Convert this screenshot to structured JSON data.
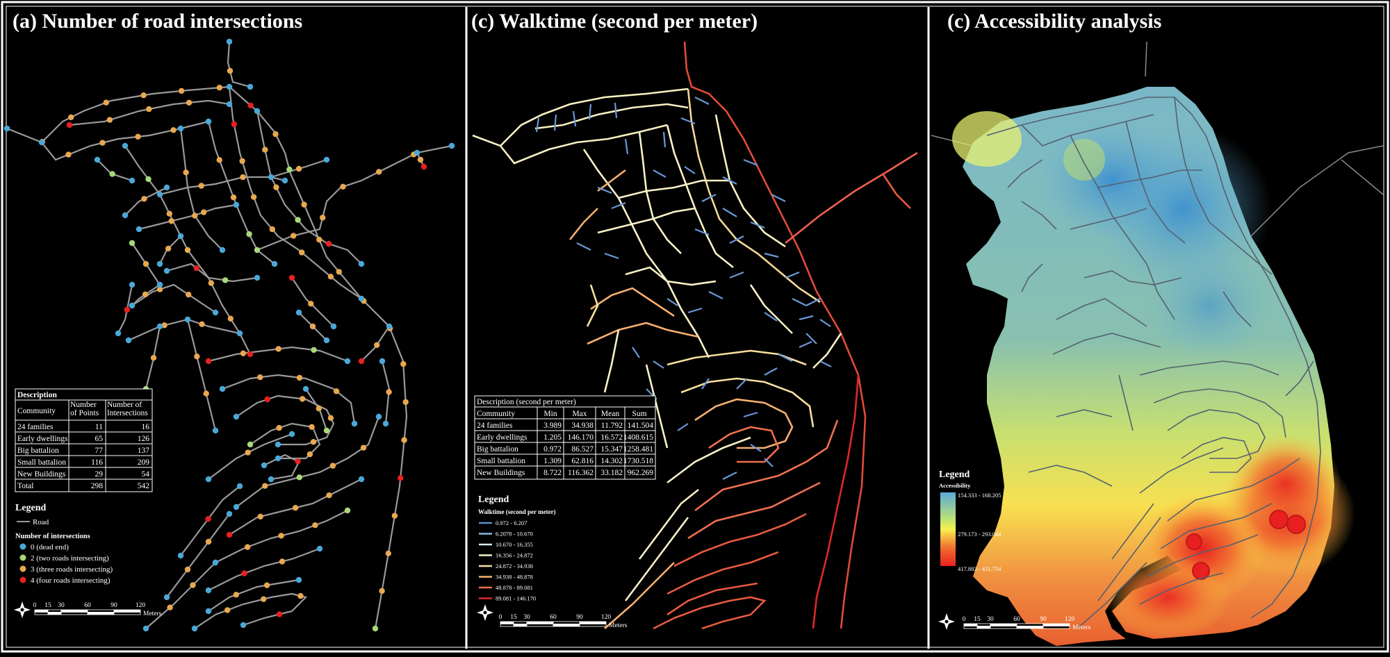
{
  "panels": [
    {
      "title": "(a) Number of road intersections",
      "table": {
        "title": "Description",
        "headers": [
          "Community",
          "Number of Points",
          "Number of Intersections"
        ],
        "rows": [
          [
            "24 families",
            "11",
            "16"
          ],
          [
            "Early dwellings",
            "65",
            "126"
          ],
          [
            "Big battalion",
            "77",
            "137"
          ],
          [
            "Small battalion",
            "116",
            "209"
          ],
          [
            "New Buildings",
            "29",
            "54"
          ],
          [
            "Total",
            "298",
            "542"
          ]
        ]
      },
      "legend": {
        "title": "Legend",
        "road_label": "Road",
        "subtitle": "Number of intersections",
        "items": [
          {
            "label": "0 (dead end)",
            "color": "#4aa8d8"
          },
          {
            "label": "2 (two roads intersecting)",
            "color": "#a8d878"
          },
          {
            "label": "3 (three roads intersecting)",
            "color": "#e8a850"
          },
          {
            "label": "4 (four roads intersecting)",
            "color": "#e82020"
          }
        ]
      },
      "scale": {
        "ticks": [
          "0",
          "15",
          "30",
          "60",
          "90",
          "120"
        ],
        "unit": "Meters"
      }
    },
    {
      "title": "(c) Walktime (second per meter)",
      "table": {
        "title": "Description (second per meter)",
        "headers": [
          "Community",
          "Min",
          "Max",
          "Mean",
          "Sum"
        ],
        "rows": [
          [
            "24 families",
            "3.989",
            "34.938",
            "11.792",
            "141.504"
          ],
          [
            "Early dwellings",
            "1.205",
            "146.170",
            "16.572",
            "1408.615"
          ],
          [
            "Big battalion",
            "0.972",
            "86.527",
            "15.347",
            "1258.481"
          ],
          [
            "Small battalion",
            "1.309",
            "62.816",
            "14.302",
            "1730.518"
          ],
          [
            "New Buildings",
            "8.722",
            "116.362",
            "33.182",
            "962.269"
          ]
        ]
      },
      "legend": {
        "title": "Legend",
        "subtitle": "Walktime (second per meter)",
        "items": [
          {
            "label": "0.972 - 6.207",
            "color": "#5a8ed0"
          },
          {
            "label": "6.2078 - 10.670",
            "color": "#8ab8e0"
          },
          {
            "label": "10.670 - 16.355",
            "color": "#d8e8f0"
          },
          {
            "label": "16.356 - 24.872",
            "color": "#f0f0c8"
          },
          {
            "label": "24.872 - 34.938",
            "color": "#f8e0a0"
          },
          {
            "label": "34.938 - 48.878",
            "color": "#f8b070"
          },
          {
            "label": "48.878 - 89.081",
            "color": "#f07050"
          },
          {
            "label": "89.081 - 146.170",
            "color": "#e02828"
          }
        ]
      },
      "scale": {
        "ticks": [
          "0",
          "15",
          "30",
          "60",
          "90",
          "120"
        ],
        "unit": "Meters"
      }
    },
    {
      "title": "(c) Accessibility analysis",
      "legend": {
        "title": "Legend",
        "subtitle": "Accessibility",
        "high": "154.333 - 168.205",
        "mid": "279.173 - 293.044",
        "low": "417.883 - 431.754",
        "ramp": [
          "#5aaad8",
          "#b8e078",
          "#f8f050",
          "#f07030",
          "#e82020"
        ]
      },
      "scale": {
        "ticks": [
          "0",
          "15",
          "30",
          "60",
          "90",
          "120"
        ],
        "unit": "Meters"
      }
    }
  ]
}
